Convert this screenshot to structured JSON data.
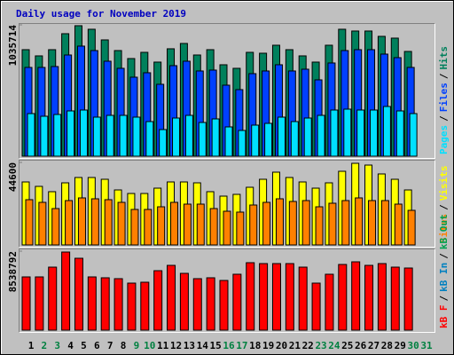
{
  "title": "Daily usage for November 2019",
  "legend_separator": "/",
  "chart_data": [
    {
      "type": "bar",
      "ylim": [
        0,
        1035714
      ],
      "yticks": [
        1035714
      ],
      "series": [
        {
          "name": "Pages",
          "color": "#00e0ff",
          "values": [
            336000,
            315000,
            329000,
            357000,
            364000,
            308000,
            322000,
            322000,
            308000,
            273000,
            210000,
            301000,
            322000,
            266000,
            294000,
            231000,
            203000,
            245000,
            259000,
            308000,
            273000,
            301000,
            322000,
            364000,
            371000,
            364000,
            364000,
            392000,
            357000,
            336000,
            null
          ]
        },
        {
          "name": "Files",
          "color": "#0040ff",
          "values": [
            700000,
            700000,
            707000,
            798000,
            868000,
            833000,
            749000,
            693000,
            623000,
            658000,
            567000,
            714000,
            749000,
            672000,
            679000,
            560000,
            525000,
            651000,
            672000,
            721000,
            672000,
            686000,
            602000,
            735000,
            833000,
            840000,
            840000,
            805000,
            777000,
            700000,
            null
          ]
        },
        {
          "name": "Hits",
          "color": "#00805c",
          "values": [
            840000,
            791000,
            840000,
            966000,
            1029000,
            1001000,
            917000,
            833000,
            770000,
            819000,
            742000,
            847000,
            889000,
            798000,
            840000,
            721000,
            693000,
            819000,
            812000,
            875000,
            840000,
            791000,
            742000,
            875000,
            1001000,
            987000,
            987000,
            945000,
            931000,
            826000,
            null
          ]
        }
      ]
    },
    {
      "type": "bar",
      "ylim": [
        0,
        44600
      ],
      "yticks": [
        44600
      ],
      "series": [
        {
          "name": "Sites",
          "color": "#ff8000",
          "values": [
            24460,
            23020,
            19660,
            23980,
            25420,
            24940,
            24460,
            23020,
            19180,
            19180,
            20620,
            23020,
            22060,
            22060,
            19660,
            18220,
            17750,
            21580,
            23020,
            24940,
            23500,
            23980,
            20620,
            22540,
            23980,
            25420,
            23980,
            23980,
            22060,
            18700,
            null
          ]
        },
        {
          "name": "Visits",
          "color": "#ffff00",
          "values": [
            34050,
            31650,
            28780,
            33570,
            36450,
            36450,
            35490,
            29730,
            27810,
            27810,
            30690,
            34050,
            34050,
            33570,
            28780,
            26380,
            27340,
            31170,
            35490,
            39330,
            36450,
            34050,
            30690,
            33570,
            39810,
            44120,
            43160,
            38370,
            35490,
            29730,
            null
          ]
        }
      ]
    },
    {
      "type": "bar",
      "ylim": [
        0,
        8538792
      ],
      "yticks": [
        8538792
      ],
      "categories": [
        "1",
        "2",
        "3",
        "4",
        "5",
        "6",
        "7",
        "8",
        "9",
        "10",
        "11",
        "12",
        "13",
        "14",
        "15",
        "16",
        "17",
        "18",
        "19",
        "20",
        "21",
        "22",
        "23",
        "24",
        "25",
        "26",
        "27",
        "28",
        "29",
        "30",
        "31"
      ],
      "category_colors": [
        "#000000",
        "#008040",
        "#008040",
        "#000000",
        "#000000",
        "#000000",
        "#000000",
        "#000000",
        "#008040",
        "#008040",
        "#000000",
        "#000000",
        "#000000",
        "#000000",
        "#000000",
        "#008040",
        "#008040",
        "#000000",
        "#000000",
        "#000000",
        "#000000",
        "#000000",
        "#008040",
        "#008040",
        "#000000",
        "#000000",
        "#000000",
        "#000000",
        "#000000",
        "#008040",
        "#008040"
      ],
      "series": [
        {
          "name": "kB F",
          "color": "#ff0000",
          "values": [
            5756000,
            5756000,
            6812000,
            8443000,
            7771000,
            5756000,
            5661000,
            5565000,
            5085000,
            5181000,
            6428000,
            7004000,
            6140000,
            5565000,
            5661000,
            5373000,
            6044000,
            7292000,
            7196000,
            7196000,
            7196000,
            6812000,
            5085000,
            6044000,
            7100000,
            7387000,
            7004000,
            7196000,
            6812000,
            6716000,
            null
          ]
        },
        {
          "name": "kB In",
          "color": "#0080c0",
          "values": [
            null,
            null,
            null,
            null,
            null,
            null,
            null,
            null,
            null,
            null,
            null,
            null,
            null,
            null,
            null,
            null,
            null,
            null,
            null,
            null,
            null,
            null,
            null,
            null,
            null,
            null,
            null,
            null,
            null,
            null,
            null
          ]
        },
        {
          "name": "kB Out",
          "color": "#00a050",
          "values": [
            null,
            null,
            null,
            null,
            null,
            null,
            null,
            null,
            null,
            null,
            null,
            null,
            null,
            null,
            null,
            null,
            null,
            null,
            null,
            null,
            null,
            null,
            null,
            null,
            null,
            null,
            null,
            null,
            null,
            null,
            null
          ]
        }
      ]
    }
  ]
}
